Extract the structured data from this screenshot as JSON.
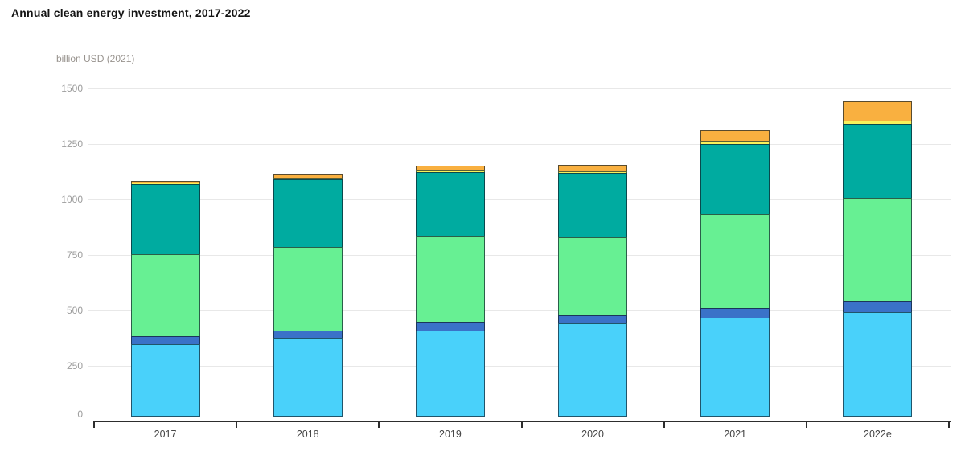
{
  "header": {
    "title": "Annual clean energy investment, 2017-2022"
  },
  "chart_data": {
    "type": "bar",
    "stacked": true,
    "title": "Annual clean energy investment, 2017-2022",
    "unit_label": "billion USD (2021)",
    "categories": [
      "2017",
      "2018",
      "2019",
      "2020",
      "2021",
      "2022e"
    ],
    "series": [
      {
        "name": "light-blue-bottom-segment",
        "color": "#49D1FA",
        "values": [
          326,
          358,
          390,
          421,
          446,
          472
        ]
      },
      {
        "name": "dark-blue-segment",
        "color": "#3A72C8",
        "values": [
          40,
          34,
          41,
          42,
          50,
          55
        ]
      },
      {
        "name": "light-green-segment",
        "color": "#67F093",
        "values": [
          374,
          381,
          388,
          353,
          425,
          467
        ]
      },
      {
        "name": "teal-segment",
        "color": "#00ABA0",
        "values": [
          320,
          310,
          294,
          295,
          320,
          338
        ]
      },
      {
        "name": "yellow-segment",
        "color": "#F8F15B",
        "values": [
          12,
          9,
          12,
          9,
          17,
          18
        ]
      },
      {
        "name": "orange-top-segment",
        "color": "#F9B040",
        "values": [
          9,
          21,
          24,
          33,
          52,
          90
        ]
      }
    ],
    "totals": [
      1081,
      1113,
      1149,
      1153,
      1310,
      1440
    ],
    "y_axis": {
      "min": 0,
      "max": 1500,
      "ticks": [
        0,
        250,
        500,
        750,
        1000,
        1250,
        1500
      ]
    },
    "grid": true,
    "legend_position": "none"
  },
  "colors": {
    "background": "#ffffff",
    "gridline": "#e8e8e8",
    "axis_line": "#2d2d2d",
    "title_text": "#141414",
    "tick_text": "#9c9c9c",
    "category_text": "#454545",
    "segment_outline": "#0e1b26"
  }
}
